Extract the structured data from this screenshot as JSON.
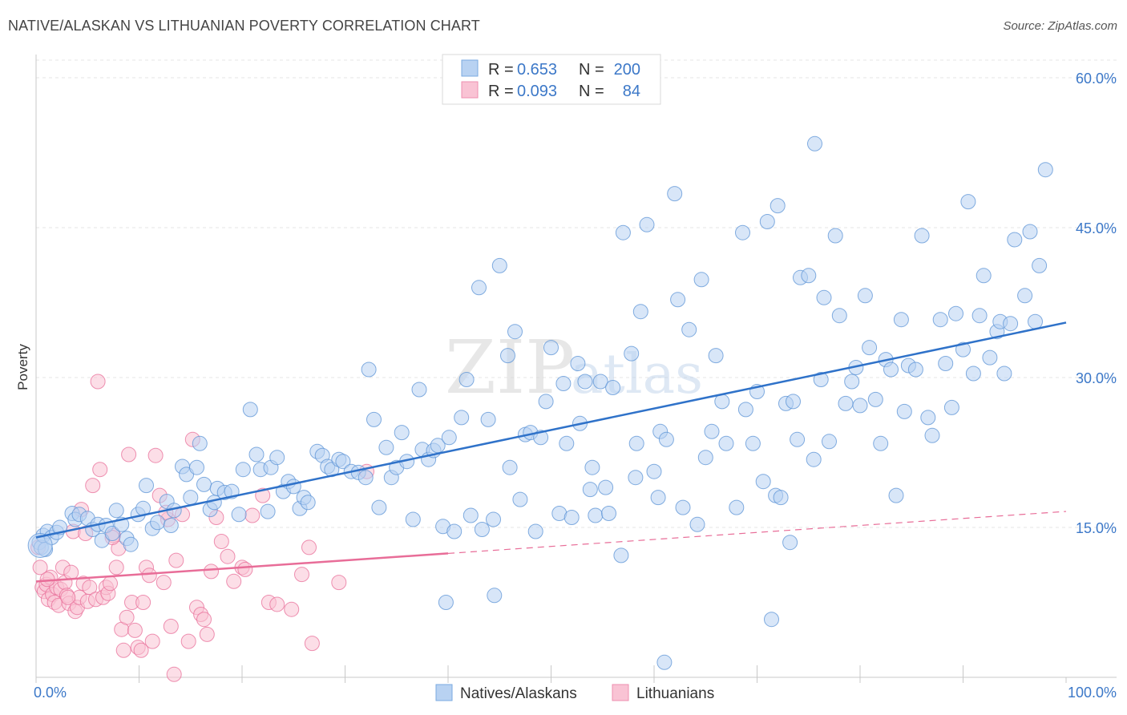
{
  "title": "NATIVE/ALASKAN VS LITHUANIAN POVERTY CORRELATION CHART",
  "source": "Source: ZipAtlas.com",
  "watermark": {
    "zip": "ZIP",
    "atlas": "atlas"
  },
  "legend": {
    "r_label": "R =",
    "n_label": "N =",
    "rows": [
      {
        "name": "Natives/Alaskans",
        "r": "0.653",
        "n": "200",
        "fill": "#b8d2f2",
        "stroke": "#7aaae0"
      },
      {
        "name": "Lithuanians",
        "r": "0.093",
        "n": "84",
        "fill": "#f9c3d4",
        "stroke": "#ee8faf"
      }
    ]
  },
  "chart_data": {
    "type": "scatter",
    "title": "NATIVE/ALASKAN VS LITHUANIAN POVERTY CORRELATION CHART",
    "xlabel": "",
    "ylabel": "Poverty",
    "xlim": [
      0,
      100
    ],
    "ylim": [
      0,
      63
    ],
    "x_ticks": [
      {
        "value": 0,
        "label": "0.0%"
      },
      {
        "value": 100,
        "label": "100.0%"
      }
    ],
    "y_ticks": [
      {
        "value": 15,
        "label": "15.0%"
      },
      {
        "value": 30,
        "label": "30.0%"
      },
      {
        "value": 45,
        "label": "45.0%"
      },
      {
        "value": 60,
        "label": "60.0%"
      }
    ],
    "grid": true,
    "legend_position": "top-center",
    "series": [
      {
        "name": "Natives/Alaskans",
        "color": "#5b93d6",
        "fill": "#b8d2f2",
        "r": 0.653,
        "n": 200,
        "trend": {
          "x": [
            0,
            100
          ],
          "y": [
            14.0,
            35.5
          ],
          "style": "solid"
        },
        "points": [
          [
            0.3,
            13.5
          ],
          [
            0.5,
            13.0
          ],
          [
            0.7,
            14.2
          ],
          [
            0.9,
            12.8
          ],
          [
            1.1,
            14.6
          ],
          [
            1.5,
            14.0
          ],
          [
            2.0,
            14.5
          ],
          [
            2.3,
            15.0
          ],
          [
            3.5,
            16.4
          ],
          [
            3.8,
            15.8
          ],
          [
            4.2,
            16.3
          ],
          [
            5.0,
            15.9
          ],
          [
            5.5,
            14.8
          ],
          [
            6.0,
            15.3
          ],
          [
            6.4,
            13.7
          ],
          [
            6.8,
            15.2
          ],
          [
            7.4,
            14.4
          ],
          [
            7.8,
            16.7
          ],
          [
            8.3,
            15.3
          ],
          [
            8.8,
            13.9
          ],
          [
            9.2,
            13.3
          ],
          [
            9.9,
            16.3
          ],
          [
            10.4,
            16.9
          ],
          [
            10.7,
            19.2
          ],
          [
            11.3,
            14.9
          ],
          [
            11.8,
            15.5
          ],
          [
            12.7,
            17.6
          ],
          [
            13.1,
            15.2
          ],
          [
            13.4,
            16.7
          ],
          [
            14.2,
            21.1
          ],
          [
            14.6,
            20.3
          ],
          [
            15.0,
            18.0
          ],
          [
            15.6,
            21.0
          ],
          [
            15.9,
            23.4
          ],
          [
            16.3,
            19.3
          ],
          [
            16.9,
            16.8
          ],
          [
            17.3,
            17.5
          ],
          [
            17.6,
            18.9
          ],
          [
            18.3,
            18.5
          ],
          [
            19.0,
            18.6
          ],
          [
            19.7,
            16.3
          ],
          [
            20.1,
            20.8
          ],
          [
            20.8,
            26.8
          ],
          [
            21.4,
            22.3
          ],
          [
            21.8,
            20.8
          ],
          [
            22.5,
            16.6
          ],
          [
            22.8,
            21.0
          ],
          [
            23.4,
            22.0
          ],
          [
            24.0,
            18.6
          ],
          [
            24.5,
            19.6
          ],
          [
            25.0,
            19.1
          ],
          [
            25.6,
            16.9
          ],
          [
            26.0,
            18.0
          ],
          [
            26.4,
            17.5
          ],
          [
            27.3,
            22.6
          ],
          [
            27.8,
            22.2
          ],
          [
            28.3,
            21.1
          ],
          [
            28.7,
            20.8
          ],
          [
            29.4,
            21.8
          ],
          [
            29.8,
            21.6
          ],
          [
            30.6,
            20.6
          ],
          [
            31.3,
            20.5
          ],
          [
            32.0,
            20.0
          ],
          [
            32.3,
            30.8
          ],
          [
            32.8,
            25.8
          ],
          [
            33.3,
            17.0
          ],
          [
            34.0,
            23.0
          ],
          [
            34.5,
            20.0
          ],
          [
            35.0,
            21.0
          ],
          [
            35.5,
            24.5
          ],
          [
            36.0,
            21.6
          ],
          [
            36.6,
            15.8
          ],
          [
            37.2,
            28.8
          ],
          [
            37.5,
            22.8
          ],
          [
            38.1,
            21.8
          ],
          [
            38.6,
            22.7
          ],
          [
            39.0,
            23.2
          ],
          [
            39.5,
            15.1
          ],
          [
            40.1,
            24.0
          ],
          [
            40.6,
            14.6
          ],
          [
            41.3,
            26.0
          ],
          [
            41.8,
            29.8
          ],
          [
            42.2,
            16.2
          ],
          [
            43.0,
            39.0
          ],
          [
            43.3,
            14.8
          ],
          [
            43.9,
            25.8
          ],
          [
            44.4,
            15.8
          ],
          [
            45.0,
            41.2
          ],
          [
            46.0,
            21.0
          ],
          [
            46.5,
            34.6
          ],
          [
            47.0,
            17.8
          ],
          [
            47.5,
            24.3
          ],
          [
            48.0,
            24.5
          ],
          [
            48.5,
            14.6
          ],
          [
            49.0,
            24.0
          ],
          [
            49.5,
            27.6
          ],
          [
            50.0,
            33.0
          ],
          [
            50.8,
            16.4
          ],
          [
            51.2,
            29.4
          ],
          [
            51.5,
            23.4
          ],
          [
            52.0,
            16.0
          ],
          [
            52.8,
            25.4
          ],
          [
            53.3,
            29.6
          ],
          [
            53.8,
            18.8
          ],
          [
            54.3,
            16.2
          ],
          [
            54.8,
            29.6
          ],
          [
            55.3,
            19.0
          ],
          [
            55.6,
            16.4
          ],
          [
            56.0,
            29.0
          ],
          [
            56.8,
            12.2
          ],
          [
            57.0,
            44.5
          ],
          [
            57.8,
            32.4
          ],
          [
            58.3,
            23.4
          ],
          [
            58.7,
            36.6
          ],
          [
            59.3,
            45.3
          ],
          [
            60.4,
            18.0
          ],
          [
            60.6,
            24.6
          ],
          [
            61.2,
            23.8
          ],
          [
            62.0,
            48.4
          ],
          [
            62.3,
            37.8
          ],
          [
            62.8,
            17.0
          ],
          [
            63.4,
            34.8
          ],
          [
            64.2,
            15.3
          ],
          [
            64.6,
            39.8
          ],
          [
            65.0,
            22.0
          ],
          [
            65.6,
            24.6
          ],
          [
            66.0,
            32.2
          ],
          [
            66.6,
            27.6
          ],
          [
            67.0,
            23.4
          ],
          [
            68.0,
            17.0
          ],
          [
            68.6,
            44.5
          ],
          [
            68.9,
            26.8
          ],
          [
            69.6,
            23.4
          ],
          [
            70.0,
            28.6
          ],
          [
            70.6,
            19.6
          ],
          [
            71.0,
            45.6
          ],
          [
            71.4,
            5.8
          ],
          [
            71.8,
            18.2
          ],
          [
            72.3,
            18.0
          ],
          [
            72.8,
            27.4
          ],
          [
            73.2,
            13.5
          ],
          [
            73.5,
            27.6
          ],
          [
            73.9,
            23.8
          ],
          [
            74.2,
            40.0
          ],
          [
            75.0,
            40.2
          ],
          [
            75.5,
            21.8
          ],
          [
            76.2,
            29.8
          ],
          [
            76.5,
            38.0
          ],
          [
            77.0,
            23.6
          ],
          [
            77.6,
            44.2
          ],
          [
            78.0,
            36.2
          ],
          [
            78.6,
            27.4
          ],
          [
            79.2,
            29.6
          ],
          [
            79.6,
            31.0
          ],
          [
            80.0,
            27.2
          ],
          [
            80.5,
            38.2
          ],
          [
            80.9,
            33.0
          ],
          [
            81.5,
            27.8
          ],
          [
            82.0,
            23.4
          ],
          [
            82.5,
            31.8
          ],
          [
            83.0,
            30.8
          ],
          [
            83.5,
            18.2
          ],
          [
            84.0,
            35.8
          ],
          [
            84.3,
            26.6
          ],
          [
            84.7,
            31.2
          ],
          [
            85.4,
            30.8
          ],
          [
            86.0,
            44.2
          ],
          [
            86.6,
            26.0
          ],
          [
            87.0,
            24.2
          ],
          [
            87.8,
            35.8
          ],
          [
            88.3,
            31.4
          ],
          [
            88.9,
            27.0
          ],
          [
            89.3,
            36.4
          ],
          [
            90.0,
            32.8
          ],
          [
            90.5,
            47.6
          ],
          [
            91.0,
            30.4
          ],
          [
            91.6,
            36.2
          ],
          [
            92.0,
            40.2
          ],
          [
            92.6,
            32.0
          ],
          [
            93.3,
            34.6
          ],
          [
            93.6,
            35.6
          ],
          [
            94.0,
            30.4
          ],
          [
            94.6,
            35.4
          ],
          [
            95.0,
            43.8
          ],
          [
            96.0,
            38.2
          ],
          [
            96.5,
            44.6
          ],
          [
            97.0,
            35.6
          ],
          [
            97.4,
            41.2
          ],
          [
            98.0,
            50.8
          ],
          [
            75.6,
            53.4
          ],
          [
            72.0,
            47.2
          ],
          [
            60.0,
            20.6
          ],
          [
            58.2,
            20.0
          ],
          [
            52.6,
            31.4
          ],
          [
            45.8,
            32.2
          ],
          [
            54.0,
            21.0
          ],
          [
            39.8,
            7.5
          ],
          [
            44.5,
            8.2
          ],
          [
            61.0,
            1.5
          ]
        ]
      },
      {
        "name": "Lithuanians",
        "color": "#e86d98",
        "fill": "#f9c3d4",
        "r": 0.093,
        "n": 84,
        "trend": {
          "x": [
            0,
            40
          ],
          "y": [
            9.6,
            12.4
          ],
          "style": "solid",
          "dashed_extension": {
            "x": [
              40,
              100
            ],
            "y": [
              12.4,
              16.6
            ]
          }
        },
        "points": [
          [
            0.2,
            13.0
          ],
          [
            0.4,
            11.0
          ],
          [
            0.6,
            9.0
          ],
          [
            0.8,
            8.6
          ],
          [
            1.0,
            9.3
          ],
          [
            1.2,
            7.8
          ],
          [
            1.4,
            10.0
          ],
          [
            1.6,
            8.3
          ],
          [
            1.8,
            7.5
          ],
          [
            2.0,
            9.0
          ],
          [
            2.2,
            7.2
          ],
          [
            2.4,
            8.8
          ],
          [
            2.6,
            11.0
          ],
          [
            2.8,
            9.5
          ],
          [
            3.0,
            8.2
          ],
          [
            3.2,
            7.4
          ],
          [
            3.4,
            10.5
          ],
          [
            3.6,
            14.6
          ],
          [
            3.8,
            6.6
          ],
          [
            4.0,
            7.0
          ],
          [
            4.2,
            8.0
          ],
          [
            4.4,
            16.8
          ],
          [
            4.6,
            9.4
          ],
          [
            4.8,
            14.4
          ],
          [
            5.0,
            7.6
          ],
          [
            5.2,
            9.0
          ],
          [
            5.5,
            19.2
          ],
          [
            5.8,
            7.8
          ],
          [
            6.0,
            29.6
          ],
          [
            6.2,
            20.8
          ],
          [
            6.5,
            8.0
          ],
          [
            6.8,
            9.0
          ],
          [
            7.0,
            8.4
          ],
          [
            7.2,
            9.4
          ],
          [
            7.5,
            14.2
          ],
          [
            7.8,
            11.0
          ],
          [
            8.0,
            12.9
          ],
          [
            8.3,
            4.8
          ],
          [
            8.5,
            2.7
          ],
          [
            8.8,
            6.0
          ],
          [
            9.0,
            22.3
          ],
          [
            9.3,
            7.5
          ],
          [
            9.6,
            4.7
          ],
          [
            9.9,
            3.0
          ],
          [
            10.2,
            2.7
          ],
          [
            10.4,
            7.5
          ],
          [
            10.7,
            11.0
          ],
          [
            11.0,
            10.2
          ],
          [
            11.3,
            3.6
          ],
          [
            11.6,
            22.2
          ],
          [
            12.0,
            18.2
          ],
          [
            12.4,
            9.5
          ],
          [
            12.8,
            15.8
          ],
          [
            13.1,
            5.1
          ],
          [
            13.4,
            0.3
          ],
          [
            13.6,
            11.7
          ],
          [
            14.2,
            16.3
          ],
          [
            14.8,
            3.6
          ],
          [
            15.2,
            23.8
          ],
          [
            15.6,
            7.0
          ],
          [
            16.0,
            6.3
          ],
          [
            16.3,
            5.8
          ],
          [
            16.6,
            4.3
          ],
          [
            17.0,
            10.6
          ],
          [
            17.5,
            16.0
          ],
          [
            18.0,
            13.6
          ],
          [
            18.6,
            12.1
          ],
          [
            19.2,
            9.6
          ],
          [
            20.0,
            11.0
          ],
          [
            20.3,
            10.8
          ],
          [
            21.0,
            16.2
          ],
          [
            22.0,
            18.2
          ],
          [
            22.6,
            7.5
          ],
          [
            23.4,
            7.3
          ],
          [
            24.8,
            6.8
          ],
          [
            25.8,
            10.3
          ],
          [
            26.5,
            13.0
          ],
          [
            26.8,
            3.4
          ],
          [
            29.4,
            9.5
          ],
          [
            32.1,
            20.6
          ],
          [
            12.6,
            16.5
          ],
          [
            7.4,
            14.0
          ],
          [
            3.1,
            8.0
          ],
          [
            1.1,
            9.8
          ]
        ]
      }
    ]
  }
}
